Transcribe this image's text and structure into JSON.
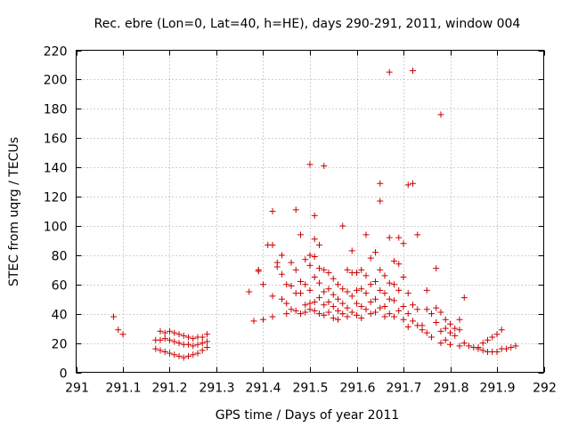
{
  "chart_data": {
    "type": "scatter",
    "title": "Rec. ebre (Lon=0, Lat=40, h=HE), days 290-291, 2011, window 004",
    "xlabel": "GPS time / Days of year 2011",
    "ylabel": "STEC from uqrg / TECUs",
    "xlim": [
      291,
      292
    ],
    "ylim": [
      0,
      220
    ],
    "xticks": [
      291,
      291.1,
      291.2,
      291.3,
      291.4,
      291.5,
      291.6,
      291.7,
      291.8,
      291.9,
      292
    ],
    "xtick_labels": [
      "291",
      "291.1",
      "291.2",
      "291.3",
      "291.4",
      "291.5",
      "291.6",
      "291.7",
      "291.8",
      "291.9",
      "292"
    ],
    "yticks": [
      0,
      20,
      40,
      60,
      80,
      100,
      120,
      140,
      160,
      180,
      200,
      220
    ],
    "ytick_labels": [
      "0",
      "20",
      "40",
      "60",
      "80",
      "100",
      "120",
      "140",
      "160",
      "180",
      "200",
      "220"
    ],
    "grid": true,
    "marker": "plus",
    "color": "#cc0000",
    "points": [
      [
        291.08,
        38
      ],
      [
        291.09,
        29
      ],
      [
        291.1,
        26
      ],
      [
        291.17,
        22
      ],
      [
        291.18,
        22
      ],
      [
        291.19,
        23
      ],
      [
        291.2,
        22
      ],
      [
        291.21,
        21
      ],
      [
        291.22,
        20
      ],
      [
        291.23,
        19
      ],
      [
        291.24,
        19
      ],
      [
        291.25,
        18
      ],
      [
        291.26,
        19
      ],
      [
        291.27,
        20
      ],
      [
        291.28,
        21
      ],
      [
        291.18,
        28
      ],
      [
        291.19,
        27
      ],
      [
        291.2,
        28
      ],
      [
        291.21,
        27
      ],
      [
        291.22,
        26
      ],
      [
        291.23,
        25
      ],
      [
        291.24,
        24
      ],
      [
        291.25,
        23
      ],
      [
        291.26,
        24
      ],
      [
        291.27,
        24
      ],
      [
        291.28,
        26
      ],
      [
        291.17,
        16
      ],
      [
        291.18,
        15
      ],
      [
        291.19,
        14
      ],
      [
        291.2,
        13
      ],
      [
        291.21,
        12
      ],
      [
        291.22,
        11
      ],
      [
        291.23,
        10
      ],
      [
        291.24,
        11
      ],
      [
        291.25,
        12
      ],
      [
        291.26,
        13
      ],
      [
        291.27,
        15
      ],
      [
        291.28,
        17
      ],
      [
        291.37,
        55
      ],
      [
        291.38,
        35
      ],
      [
        291.39,
        70
      ],
      [
        291.39,
        69
      ],
      [
        291.4,
        60
      ],
      [
        291.4,
        36
      ],
      [
        291.41,
        87
      ],
      [
        291.42,
        87
      ],
      [
        291.42,
        110
      ],
      [
        291.42,
        52
      ],
      [
        291.42,
        38
      ],
      [
        291.43,
        75
      ],
      [
        291.43,
        72
      ],
      [
        291.44,
        80
      ],
      [
        291.44,
        67
      ],
      [
        291.44,
        50
      ],
      [
        291.45,
        60
      ],
      [
        291.45,
        47
      ],
      [
        291.45,
        40
      ],
      [
        291.46,
        75
      ],
      [
        291.46,
        59
      ],
      [
        291.46,
        43
      ],
      [
        291.47,
        111
      ],
      [
        291.47,
        70
      ],
      [
        291.47,
        54
      ],
      [
        291.47,
        42
      ],
      [
        291.48,
        94
      ],
      [
        291.48,
        62
      ],
      [
        291.48,
        54
      ],
      [
        291.48,
        40
      ],
      [
        291.49,
        77
      ],
      [
        291.49,
        60
      ],
      [
        291.49,
        46
      ],
      [
        291.49,
        41
      ],
      [
        291.5,
        142
      ],
      [
        291.5,
        80
      ],
      [
        291.5,
        73
      ],
      [
        291.5,
        56
      ],
      [
        291.5,
        47
      ],
      [
        291.5,
        43
      ],
      [
        291.51,
        107
      ],
      [
        291.51,
        91
      ],
      [
        291.51,
        79
      ],
      [
        291.51,
        65
      ],
      [
        291.51,
        48
      ],
      [
        291.51,
        42
      ],
      [
        291.52,
        87
      ],
      [
        291.52,
        71
      ],
      [
        291.52,
        61
      ],
      [
        291.52,
        51
      ],
      [
        291.52,
        40
      ],
      [
        291.53,
        141
      ],
      [
        291.53,
        70
      ],
      [
        291.53,
        55
      ],
      [
        291.53,
        46
      ],
      [
        291.53,
        39
      ],
      [
        291.54,
        68
      ],
      [
        291.54,
        57
      ],
      [
        291.54,
        48
      ],
      [
        291.54,
        41
      ],
      [
        291.55,
        64
      ],
      [
        291.55,
        53
      ],
      [
        291.55,
        45
      ],
      [
        291.55,
        37
      ],
      [
        291.56,
        60
      ],
      [
        291.56,
        50
      ],
      [
        291.56,
        42
      ],
      [
        291.56,
        36
      ],
      [
        291.57,
        100
      ],
      [
        291.57,
        57
      ],
      [
        291.57,
        47
      ],
      [
        291.57,
        40
      ],
      [
        291.58,
        70
      ],
      [
        291.58,
        55
      ],
      [
        291.58,
        44
      ],
      [
        291.58,
        38
      ],
      [
        291.59,
        83
      ],
      [
        291.59,
        68
      ],
      [
        291.59,
        52
      ],
      [
        291.59,
        41
      ],
      [
        291.6,
        68
      ],
      [
        291.6,
        56
      ],
      [
        291.6,
        47
      ],
      [
        291.6,
        39
      ],
      [
        291.61,
        70
      ],
      [
        291.61,
        57
      ],
      [
        291.61,
        45
      ],
      [
        291.61,
        37
      ],
      [
        291.62,
        94
      ],
      [
        291.62,
        66
      ],
      [
        291.62,
        54
      ],
      [
        291.62,
        43
      ],
      [
        291.63,
        78
      ],
      [
        291.63,
        60
      ],
      [
        291.63,
        48
      ],
      [
        291.63,
        40
      ],
      [
        291.64,
        82
      ],
      [
        291.64,
        62
      ],
      [
        291.64,
        50
      ],
      [
        291.64,
        41
      ],
      [
        291.65,
        129
      ],
      [
        291.65,
        117
      ],
      [
        291.65,
        70
      ],
      [
        291.65,
        56
      ],
      [
        291.65,
        44
      ],
      [
        291.66,
        66
      ],
      [
        291.66,
        54
      ],
      [
        291.66,
        45
      ],
      [
        291.66,
        38
      ],
      [
        291.67,
        205
      ],
      [
        291.67,
        92
      ],
      [
        291.67,
        61
      ],
      [
        291.67,
        50
      ],
      [
        291.67,
        40
      ],
      [
        291.68,
        76
      ],
      [
        291.68,
        60
      ],
      [
        291.68,
        49
      ],
      [
        291.68,
        38
      ],
      [
        291.69,
        92
      ],
      [
        291.69,
        74
      ],
      [
        291.69,
        56
      ],
      [
        291.69,
        42
      ],
      [
        291.7,
        88
      ],
      [
        291.7,
        65
      ],
      [
        291.7,
        45
      ],
      [
        291.7,
        36
      ],
      [
        291.71,
        128
      ],
      [
        291.71,
        54
      ],
      [
        291.71,
        40
      ],
      [
        291.71,
        31
      ],
      [
        291.72,
        206
      ],
      [
        291.72,
        129
      ],
      [
        291.72,
        46
      ],
      [
        291.72,
        35
      ],
      [
        291.73,
        94
      ],
      [
        291.73,
        43
      ],
      [
        291.73,
        32
      ],
      [
        291.74,
        32
      ],
      [
        291.74,
        29
      ],
      [
        291.75,
        56
      ],
      [
        291.75,
        43
      ],
      [
        291.75,
        27
      ],
      [
        291.76,
        40
      ],
      [
        291.76,
        24
      ],
      [
        291.77,
        71
      ],
      [
        291.77,
        44
      ],
      [
        291.77,
        34
      ],
      [
        291.78,
        176
      ],
      [
        291.78,
        41
      ],
      [
        291.78,
        28
      ],
      [
        291.78,
        20
      ],
      [
        291.79,
        36
      ],
      [
        291.79,
        30
      ],
      [
        291.79,
        22
      ],
      [
        291.8,
        33
      ],
      [
        291.8,
        27
      ],
      [
        291.8,
        19
      ],
      [
        291.81,
        30
      ],
      [
        291.81,
        25
      ],
      [
        291.82,
        36
      ],
      [
        291.82,
        29
      ],
      [
        291.82,
        18
      ],
      [
        291.83,
        20
      ],
      [
        291.83,
        51
      ],
      [
        291.84,
        18
      ],
      [
        291.85,
        17
      ],
      [
        291.86,
        17
      ],
      [
        291.86,
        16
      ],
      [
        291.87,
        20
      ],
      [
        291.87,
        15
      ],
      [
        291.88,
        22
      ],
      [
        291.88,
        14
      ],
      [
        291.89,
        24
      ],
      [
        291.89,
        14
      ],
      [
        291.9,
        26
      ],
      [
        291.9,
        14
      ],
      [
        291.91,
        29
      ],
      [
        291.91,
        16
      ],
      [
        291.92,
        16
      ],
      [
        291.93,
        17
      ],
      [
        291.94,
        18
      ]
    ]
  }
}
